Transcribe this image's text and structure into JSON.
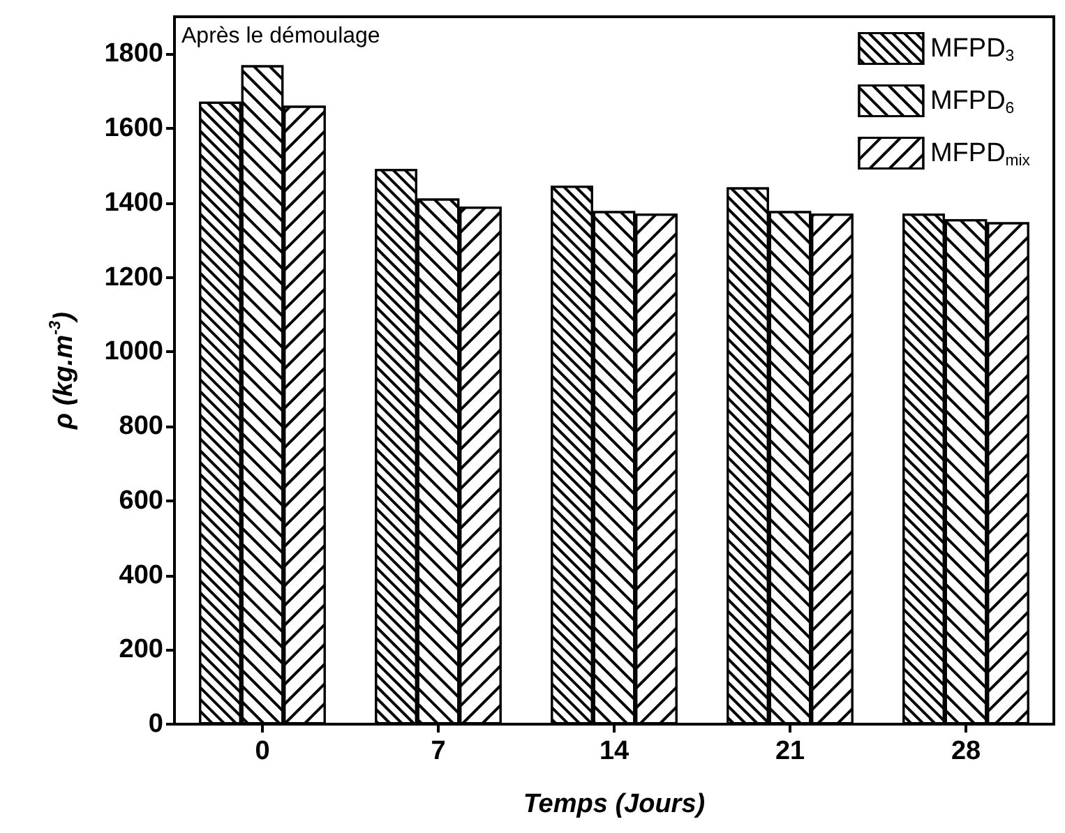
{
  "chart_data": {
    "type": "bar",
    "xlabel": "Temps (Jours)",
    "ylabel": "ρ (kg.m$^{-3}$)",
    "categories": [
      "0",
      "7",
      "14",
      "21",
      "28"
    ],
    "series": [
      {
        "name": "MFPD$_{3}$",
        "color": "#ffffff",
        "values": [
          1672,
          1491,
          1446,
          1442,
          1371
        ]
      },
      {
        "name": "MFPD$_{6}$",
        "color": "#ffffff",
        "values": [
          1770,
          1412,
          1378,
          1378,
          1356
        ]
      },
      {
        "name": "MFPD$_{mix}$",
        "color": "#ffffff",
        "values": [
          1661,
          1390,
          1371,
          1371,
          1348
        ]
      }
    ],
    "ylim": [
      0,
      1900
    ],
    "yticks": [
      0,
      200,
      400,
      600,
      800,
      1000,
      1200,
      1400,
      1600,
      1800
    ],
    "annotations": [
      "Après le démoulage"
    ],
    "legend": "top right",
    "grid": false
  }
}
